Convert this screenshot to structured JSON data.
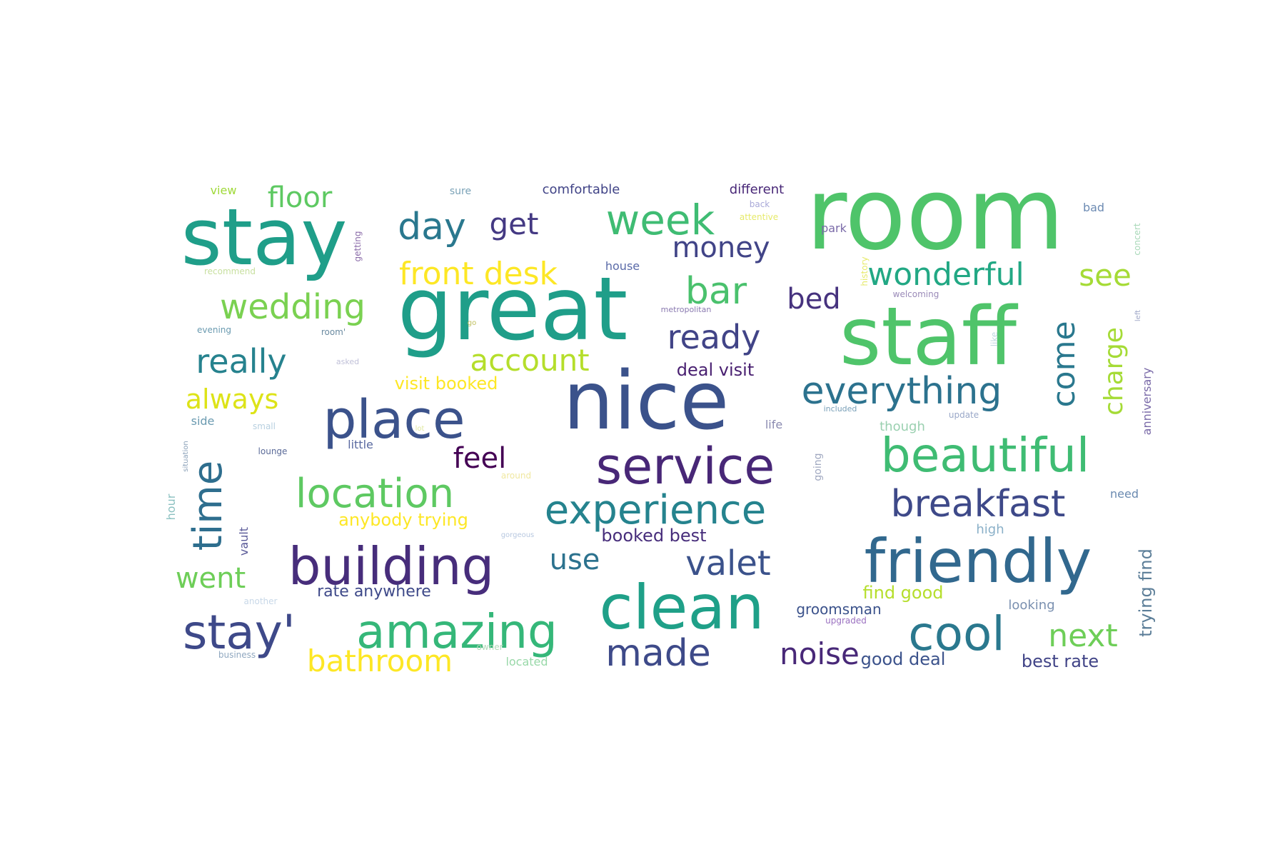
{
  "words": [
    {
      "text": "room",
      "color": "#4fc46a"
    },
    {
      "text": "stay",
      "color": "#1f9e89"
    },
    {
      "text": "great",
      "color": "#1f9e89"
    },
    {
      "text": "staff",
      "color": "#4fc46a"
    },
    {
      "text": "nice",
      "color": "#3b528b"
    },
    {
      "text": "place",
      "color": "#3b528b"
    },
    {
      "text": "service",
      "color": "#482777"
    },
    {
      "text": "beautiful",
      "color": "#3fbc73"
    },
    {
      "text": "friendly",
      "color": "#31688e"
    },
    {
      "text": "clean",
      "color": "#1fa088"
    },
    {
      "text": "building",
      "color": "#472d7b"
    },
    {
      "text": "amazing",
      "color": "#35b779"
    },
    {
      "text": "stay'",
      "color": "#3e4989"
    },
    {
      "text": "cool",
      "color": "#2a788e"
    },
    {
      "text": "experience",
      "color": "#25838e"
    },
    {
      "text": "location",
      "color": "#5ec962"
    },
    {
      "text": "everything",
      "color": "#2c728e"
    },
    {
      "text": "week",
      "color": "#3fbc73"
    },
    {
      "text": "time",
      "color": "#2e6e8e"
    },
    {
      "text": "made",
      "color": "#3e4a89"
    },
    {
      "text": "breakfast",
      "color": "#3e4989"
    },
    {
      "text": "day",
      "color": "#2a788e"
    },
    {
      "text": "bar",
      "color": "#4ac16d"
    },
    {
      "text": "wedding",
      "color": "#7ad151"
    },
    {
      "text": "really",
      "color": "#26828e"
    },
    {
      "text": "ready",
      "color": "#414487"
    },
    {
      "text": "wonderful",
      "color": "#22a884"
    },
    {
      "text": "valet",
      "color": "#3b528b"
    },
    {
      "text": "next",
      "color": "#6ece58"
    },
    {
      "text": "front desk",
      "color": "#fde725"
    },
    {
      "text": "bathroom",
      "color": "#fde725"
    },
    {
      "text": "account",
      "color": "#b5de2b"
    },
    {
      "text": "come",
      "color": "#2a788e"
    },
    {
      "text": "charge",
      "color": "#a5db36"
    },
    {
      "text": "noise",
      "color": "#482878"
    },
    {
      "text": "see",
      "color": "#a5db36"
    },
    {
      "text": "floor",
      "color": "#5ec962"
    },
    {
      "text": "get",
      "color": "#443983"
    },
    {
      "text": "money",
      "color": "#414487"
    },
    {
      "text": "bed",
      "color": "#46327e"
    },
    {
      "text": "always",
      "color": "#dde318"
    },
    {
      "text": "feel",
      "color": "#440154"
    },
    {
      "text": "went",
      "color": "#6ece58"
    },
    {
      "text": "use",
      "color": "#2c728e"
    },
    {
      "text": "visit booked",
      "color": "#fde725"
    },
    {
      "text": "deal visit",
      "color": "#481f70"
    },
    {
      "text": "booked best",
      "color": "#472d7b"
    },
    {
      "text": "anybody trying",
      "color": "#fde725"
    },
    {
      "text": "rate anywhere",
      "color": "#3e4989"
    },
    {
      "text": "find good",
      "color": "#b5de2b"
    },
    {
      "text": "good deal",
      "color": "#3b528b"
    },
    {
      "text": "best rate",
      "color": "#414487"
    },
    {
      "text": "trying find",
      "color": "#5c7e98"
    },
    {
      "text": "groomsman",
      "color": "#3b528b"
    },
    {
      "text": "comfortable",
      "color": "#414487"
    },
    {
      "text": "different",
      "color": "#482777"
    },
    {
      "text": "view",
      "color": "#9fd938"
    },
    {
      "text": "sure",
      "color": "#7aa2b7"
    },
    {
      "text": "bad",
      "color": "#6d8bb3"
    },
    {
      "text": "back",
      "color": "#a8a8d8"
    },
    {
      "text": "attentive",
      "color": "#e6ea6a"
    },
    {
      "text": "park",
      "color": "#7a6aa8"
    },
    {
      "text": "history",
      "color": "#e6ea6a"
    },
    {
      "text": "concert",
      "color": "#a8d8b8"
    },
    {
      "text": "getting",
      "color": "#8a6aa8"
    },
    {
      "text": "recommend",
      "color": "#c8e0a0"
    },
    {
      "text": "house",
      "color": "#5a6aa8"
    },
    {
      "text": "welcoming",
      "color": "#9a8ab8"
    },
    {
      "text": "metropolitan",
      "color": "#8a7ab0"
    },
    {
      "text": "evening",
      "color": "#6a9ab0"
    },
    {
      "text": "room'",
      "color": "#6a8aa0"
    },
    {
      "text": "go",
      "color": "#c0c060"
    },
    {
      "text": "asked",
      "color": "#c0c0d8"
    },
    {
      "text": "like",
      "color": "#c0d8e0"
    },
    {
      "text": "anniversary",
      "color": "#7a6aa8"
    },
    {
      "text": "left",
      "color": "#a0a8c8"
    },
    {
      "text": "included",
      "color": "#7aa0b8"
    },
    {
      "text": "update",
      "color": "#9aa8c8"
    },
    {
      "text": "though",
      "color": "#9ad0b0"
    },
    {
      "text": "side",
      "color": "#6a9ab0"
    },
    {
      "text": "small",
      "color": "#b8d0e0"
    },
    {
      "text": "life",
      "color": "#8a8ab0"
    },
    {
      "text": "situation",
      "color": "#8aa0b8"
    },
    {
      "text": "lounge",
      "color": "#5a6a98"
    },
    {
      "text": "little",
      "color": "#5a6aa0"
    },
    {
      "text": "lot",
      "color": "#e0e8a0"
    },
    {
      "text": "going",
      "color": "#a0a8c0"
    },
    {
      "text": "need",
      "color": "#6a8ab0"
    },
    {
      "text": "around",
      "color": "#f0e8a0"
    },
    {
      "text": "hour",
      "color": "#8ac0c0"
    },
    {
      "text": "vault",
      "color": "#5a5a98"
    },
    {
      "text": "gorgeous",
      "color": "#b8c8e0"
    },
    {
      "text": "high",
      "color": "#8ab0c8"
    },
    {
      "text": "another",
      "color": "#c8d8e8"
    },
    {
      "text": "looking",
      "color": "#7a90b0"
    },
    {
      "text": "upgraded",
      "color": "#9a70c0"
    },
    {
      "text": "business",
      "color": "#90a8c0"
    },
    {
      "text": "owner",
      "color": "#b0d8b8"
    },
    {
      "text": "located",
      "color": "#98d8a8"
    }
  ]
}
